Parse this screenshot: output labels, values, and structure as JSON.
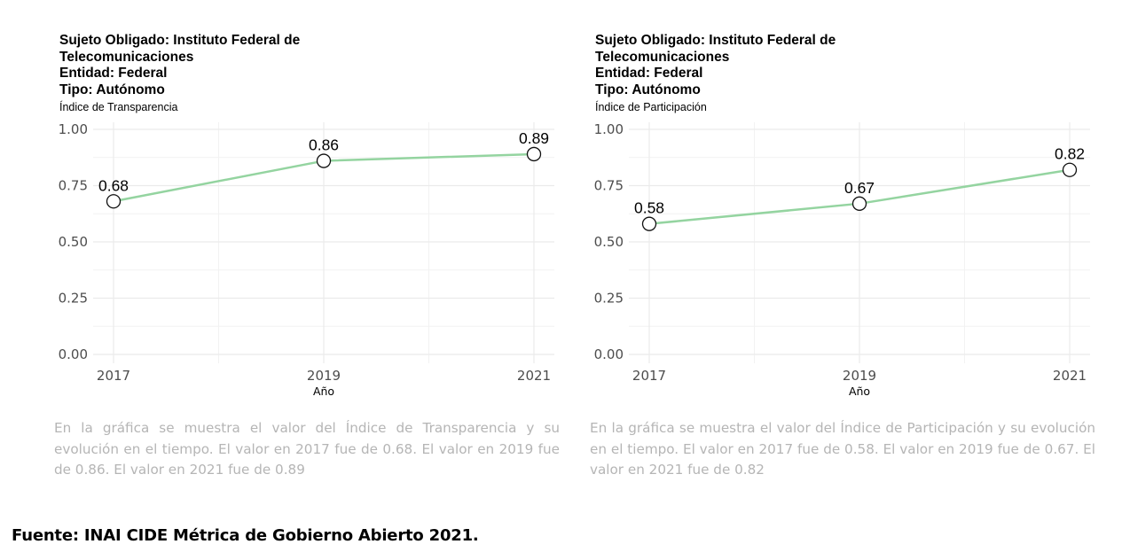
{
  "colors": {
    "line": "#94d4a0",
    "grid": "#ebebeb",
    "axis_text": "#4d4d4d",
    "description": "#b5b5b5"
  },
  "left": {
    "header": [
      "Sujeto Obligado: Instituto Federal de",
      "Telecomunicaciones",
      "Entidad: Federal",
      "Tipo: Autónomo"
    ],
    "subtitle": "Índice de Transparencia",
    "description": "En la gráfica se muestra el valor del Índice de Transparencia y su evolución en el tiempo. El valor en 2017 fue de 0.68. El valor en 2019 fue de 0.86. El valor en 2021 fue de 0.89"
  },
  "right": {
    "header": [
      "Sujeto Obligado: Instituto Federal de",
      "Telecomunicaciones",
      "Entidad: Federal",
      "Tipo: Autónomo"
    ],
    "subtitle": "Índice de Participación",
    "description": "En la gráfica se muestra el valor del Índice de Participación y su evolución en el tiempo. El valor en 2017 fue de 0.58. El valor en 2019 fue de 0.67. El valor en 2021 fue de 0.82"
  },
  "footer": "Fuente:  INAI CIDE Métrica de Gobierno Abierto 2021.",
  "chart_data": [
    {
      "type": "line",
      "x": [
        "2017",
        "2019",
        "2021"
      ],
      "values": [
        0.68,
        0.86,
        0.89
      ],
      "data_labels": [
        "0.68",
        "0.86",
        "0.89"
      ],
      "yticks": [
        "0.00",
        "0.25",
        "0.50",
        "0.75",
        "1.00"
      ],
      "ylim": [
        0,
        1
      ],
      "xlabel": "Año",
      "ylabel": "",
      "grid": true
    },
    {
      "type": "line",
      "x": [
        "2017",
        "2019",
        "2021"
      ],
      "values": [
        0.58,
        0.67,
        0.82
      ],
      "data_labels": [
        "0.58",
        "0.67",
        "0.82"
      ],
      "yticks": [
        "0.00",
        "0.25",
        "0.50",
        "0.75",
        "1.00"
      ],
      "ylim": [
        0,
        1
      ],
      "xlabel": "Año",
      "ylabel": "",
      "grid": true
    }
  ]
}
